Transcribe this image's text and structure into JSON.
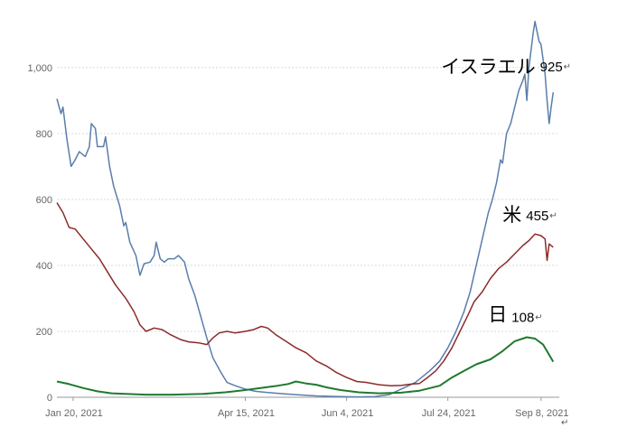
{
  "chart_data": {
    "type": "line",
    "title": "",
    "xlabel": "",
    "ylabel": "",
    "ylim": [
      0,
      1150
    ],
    "y_ticks": [
      0,
      200,
      400,
      600,
      800,
      1000
    ],
    "y_tick_labels": [
      "0",
      "200",
      "400",
      "600",
      "800",
      "1,000"
    ],
    "x_ticks": [
      {
        "date": "2021-01-20",
        "label": "Jan 20, 2021"
      },
      {
        "date": "2021-04-15",
        "label": "Apr 15, 2021"
      },
      {
        "date": "2021-06-04",
        "label": "Jun 4, 2021"
      },
      {
        "date": "2021-07-24",
        "label": "Jul 24, 2021"
      },
      {
        "date": "2021-09-08",
        "label": "Sep 8, 2021"
      }
    ],
    "x_range": [
      "2021-01-12",
      "2021-09-17"
    ],
    "grid": true,
    "series": [
      {
        "name": "イスラエル",
        "color": "#5a7dab",
        "points": [
          [
            "2021-01-12",
            905
          ],
          [
            "2021-01-14",
            860
          ],
          [
            "2021-01-15",
            880
          ],
          [
            "2021-01-17",
            780
          ],
          [
            "2021-01-19",
            700
          ],
          [
            "2021-01-21",
            720
          ],
          [
            "2021-01-23",
            745
          ],
          [
            "2021-01-26",
            730
          ],
          [
            "2021-01-28",
            760
          ],
          [
            "2021-01-29",
            830
          ],
          [
            "2021-01-31",
            815
          ],
          [
            "2021-02-01",
            760
          ],
          [
            "2021-02-04",
            760
          ],
          [
            "2021-02-05",
            790
          ],
          [
            "2021-02-07",
            700
          ],
          [
            "2021-02-09",
            640
          ],
          [
            "2021-02-12",
            580
          ],
          [
            "2021-02-14",
            520
          ],
          [
            "2021-02-15",
            530
          ],
          [
            "2021-02-17",
            470
          ],
          [
            "2021-02-20",
            430
          ],
          [
            "2021-02-22",
            370
          ],
          [
            "2021-02-24",
            405
          ],
          [
            "2021-02-27",
            410
          ],
          [
            "2021-03-01",
            430
          ],
          [
            "2021-03-02",
            470
          ],
          [
            "2021-03-04",
            420
          ],
          [
            "2021-03-06",
            410
          ],
          [
            "2021-03-08",
            420
          ],
          [
            "2021-03-11",
            420
          ],
          [
            "2021-03-13",
            430
          ],
          [
            "2021-03-16",
            410
          ],
          [
            "2021-03-18",
            360
          ],
          [
            "2021-03-21",
            310
          ],
          [
            "2021-03-24",
            245
          ],
          [
            "2021-03-27",
            180
          ],
          [
            "2021-03-30",
            120
          ],
          [
            "2021-04-03",
            75
          ],
          [
            "2021-04-06",
            45
          ],
          [
            "2021-04-10",
            35
          ],
          [
            "2021-04-15",
            25
          ],
          [
            "2021-04-20",
            18
          ],
          [
            "2021-04-25",
            15
          ],
          [
            "2021-05-01",
            12
          ],
          [
            "2021-05-10",
            8
          ],
          [
            "2021-05-20",
            4
          ],
          [
            "2021-06-01",
            2
          ],
          [
            "2021-06-10",
            1
          ],
          [
            "2021-06-18",
            2
          ],
          [
            "2021-06-25",
            8
          ],
          [
            "2021-07-01",
            25
          ],
          [
            "2021-07-08",
            45
          ],
          [
            "2021-07-15",
            80
          ],
          [
            "2021-07-20",
            110
          ],
          [
            "2021-07-24",
            150
          ],
          [
            "2021-07-28",
            200
          ],
          [
            "2021-08-01",
            260
          ],
          [
            "2021-08-04",
            320
          ],
          [
            "2021-08-07",
            400
          ],
          [
            "2021-08-10",
            480
          ],
          [
            "2021-08-13",
            560
          ],
          [
            "2021-08-15",
            600
          ],
          [
            "2021-08-17",
            650
          ],
          [
            "2021-08-19",
            720
          ],
          [
            "2021-08-20",
            710
          ],
          [
            "2021-08-22",
            800
          ],
          [
            "2021-08-24",
            830
          ],
          [
            "2021-08-26",
            880
          ],
          [
            "2021-08-28",
            930
          ],
          [
            "2021-08-30",
            960
          ],
          [
            "2021-08-31",
            980
          ],
          [
            "2021-09-01",
            900
          ],
          [
            "2021-09-02",
            1000
          ],
          [
            "2021-09-04",
            1100
          ],
          [
            "2021-09-05",
            1140
          ],
          [
            "2021-09-07",
            1080
          ],
          [
            "2021-09-08",
            1070
          ],
          [
            "2021-09-10",
            980
          ],
          [
            "2021-09-11",
            900
          ],
          [
            "2021-09-12",
            830
          ],
          [
            "2021-09-13",
            880
          ],
          [
            "2021-09-14",
            925
          ]
        ]
      },
      {
        "name": "米",
        "color": "#8b2a2a",
        "points": [
          [
            "2021-01-12",
            590
          ],
          [
            "2021-01-15",
            560
          ],
          [
            "2021-01-18",
            515
          ],
          [
            "2021-01-21",
            510
          ],
          [
            "2021-01-25",
            480
          ],
          [
            "2021-01-29",
            450
          ],
          [
            "2021-02-02",
            420
          ],
          [
            "2021-02-06",
            380
          ],
          [
            "2021-02-10",
            340
          ],
          [
            "2021-02-15",
            300
          ],
          [
            "2021-02-19",
            260
          ],
          [
            "2021-02-22",
            220
          ],
          [
            "2021-02-25",
            200
          ],
          [
            "2021-03-01",
            210
          ],
          [
            "2021-03-05",
            205
          ],
          [
            "2021-03-09",
            190
          ],
          [
            "2021-03-14",
            175
          ],
          [
            "2021-03-18",
            168
          ],
          [
            "2021-03-23",
            165
          ],
          [
            "2021-03-27",
            160
          ],
          [
            "2021-03-30",
            180
          ],
          [
            "2021-04-02",
            195
          ],
          [
            "2021-04-06",
            200
          ],
          [
            "2021-04-10",
            195
          ],
          [
            "2021-04-15",
            200
          ],
          [
            "2021-04-19",
            205
          ],
          [
            "2021-04-23",
            215
          ],
          [
            "2021-04-26",
            210
          ],
          [
            "2021-04-30",
            190
          ],
          [
            "2021-05-05",
            170
          ],
          [
            "2021-05-10",
            150
          ],
          [
            "2021-05-15",
            135
          ],
          [
            "2021-05-20",
            110
          ],
          [
            "2021-05-25",
            95
          ],
          [
            "2021-05-30",
            75
          ],
          [
            "2021-06-04",
            60
          ],
          [
            "2021-06-09",
            48
          ],
          [
            "2021-06-14",
            45
          ],
          [
            "2021-06-20",
            38
          ],
          [
            "2021-06-26",
            35
          ],
          [
            "2021-07-01",
            36
          ],
          [
            "2021-07-06",
            40
          ],
          [
            "2021-07-10",
            42
          ],
          [
            "2021-07-14",
            60
          ],
          [
            "2021-07-18",
            80
          ],
          [
            "2021-07-22",
            110
          ],
          [
            "2021-07-26",
            150
          ],
          [
            "2021-07-30",
            200
          ],
          [
            "2021-08-03",
            250
          ],
          [
            "2021-08-06",
            290
          ],
          [
            "2021-08-10",
            320
          ],
          [
            "2021-08-14",
            360
          ],
          [
            "2021-08-18",
            390
          ],
          [
            "2021-08-22",
            410
          ],
          [
            "2021-08-26",
            435
          ],
          [
            "2021-08-30",
            460
          ],
          [
            "2021-09-02",
            475
          ],
          [
            "2021-09-05",
            495
          ],
          [
            "2021-09-08",
            490
          ],
          [
            "2021-09-10",
            480
          ],
          [
            "2021-09-11",
            415
          ],
          [
            "2021-09-12",
            465
          ],
          [
            "2021-09-14",
            455
          ]
        ]
      },
      {
        "name": "日",
        "color": "#1f7a2e",
        "points": [
          [
            "2021-01-12",
            48
          ],
          [
            "2021-01-18",
            40
          ],
          [
            "2021-01-25",
            28
          ],
          [
            "2021-02-01",
            18
          ],
          [
            "2021-02-08",
            12
          ],
          [
            "2021-02-15",
            10
          ],
          [
            "2021-02-25",
            8
          ],
          [
            "2021-03-10",
            8
          ],
          [
            "2021-03-25",
            10
          ],
          [
            "2021-04-05",
            15
          ],
          [
            "2021-04-15",
            22
          ],
          [
            "2021-04-25",
            30
          ],
          [
            "2021-05-01",
            35
          ],
          [
            "2021-05-06",
            40
          ],
          [
            "2021-05-10",
            48
          ],
          [
            "2021-05-15",
            42
          ],
          [
            "2021-05-20",
            38
          ],
          [
            "2021-05-25",
            30
          ],
          [
            "2021-06-01",
            22
          ],
          [
            "2021-06-10",
            15
          ],
          [
            "2021-06-20",
            12
          ],
          [
            "2021-07-01",
            14
          ],
          [
            "2021-07-10",
            20
          ],
          [
            "2021-07-20",
            35
          ],
          [
            "2021-07-26",
            60
          ],
          [
            "2021-08-01",
            80
          ],
          [
            "2021-08-07",
            100
          ],
          [
            "2021-08-14",
            115
          ],
          [
            "2021-08-20",
            140
          ],
          [
            "2021-08-26",
            170
          ],
          [
            "2021-09-01",
            182
          ],
          [
            "2021-09-05",
            178
          ],
          [
            "2021-09-09",
            160
          ],
          [
            "2021-09-14",
            108
          ]
        ]
      }
    ],
    "annotations": [
      {
        "series": "イスラエル",
        "name": "イスラエル",
        "value": "925"
      },
      {
        "series": "米",
        "name": "米",
        "value": "455"
      },
      {
        "series": "日",
        "name": "日",
        "value": "108"
      }
    ],
    "return_mark": "↵"
  }
}
